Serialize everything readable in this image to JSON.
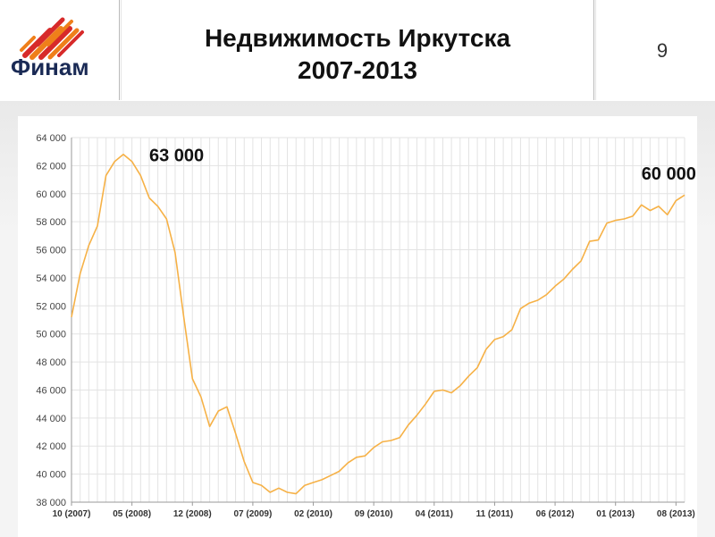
{
  "header": {
    "title_line1": "Недвижимость Иркутска",
    "title_line2": "2007-2013",
    "page_number": "9",
    "logo_text": "Финам"
  },
  "colors": {
    "line": "#f6b146",
    "grid": "#e3e3e3",
    "logo_red": "#d72a2a",
    "logo_orange": "#ef7f1a",
    "logo_text": "#1a2a55"
  },
  "chart_data": {
    "type": "line",
    "title": "",
    "xlabel": "",
    "ylabel": "",
    "ylim": [
      38000,
      64000
    ],
    "yticks": [
      38000,
      40000,
      42000,
      44000,
      46000,
      48000,
      50000,
      52000,
      54000,
      56000,
      58000,
      60000,
      62000,
      64000
    ],
    "ytick_labels": [
      "38 000",
      "40 000",
      "42 000",
      "44 000",
      "46 000",
      "48 000",
      "50 000",
      "52 000",
      "54 000",
      "56 000",
      "58 000",
      "60 000",
      "62 000",
      "64 000"
    ],
    "xticks": [
      0,
      7,
      14,
      21,
      28,
      35,
      42,
      49,
      56,
      63,
      70
    ],
    "xtick_labels": [
      "10 (2007)",
      "05 (2008)",
      "12 (2008)",
      "07 (2009)",
      "02 (2010)",
      "09 (2010)",
      "04 (2011)",
      "11 (2011)",
      "06 (2012)",
      "01 (2013)",
      "08 (2013)"
    ],
    "grid": true,
    "annotations": [
      {
        "text": "63 000",
        "x": 9,
        "y": 62300
      },
      {
        "text": "60 000",
        "x": 66,
        "y": 61000
      }
    ],
    "series": [
      {
        "x": [
          0,
          1,
          2,
          3,
          4,
          5,
          6,
          7,
          8,
          9,
          10,
          11,
          12,
          13,
          14,
          15,
          16,
          17,
          18,
          19,
          20,
          21,
          22,
          23,
          24,
          25,
          26,
          27,
          28,
          29,
          30,
          31,
          32,
          33,
          34,
          35,
          36,
          37,
          38,
          39,
          40,
          41,
          42,
          43,
          44,
          45,
          46,
          47,
          48,
          49,
          50,
          51,
          52,
          53,
          54,
          55,
          56,
          57,
          58,
          59,
          60,
          61,
          62,
          63,
          64,
          65,
          66,
          67,
          68,
          69,
          70,
          71
        ],
        "values": [
          51200,
          54300,
          56300,
          57700,
          61300,
          62300,
          62800,
          62300,
          61300,
          59700,
          59100,
          58200,
          55800,
          51200,
          46800,
          45500,
          43400,
          44500,
          44800,
          42900,
          40900,
          39400,
          39200,
          38700,
          39000,
          38700,
          38600,
          39200,
          39400,
          39600,
          39900,
          40200,
          40800,
          41200,
          41300,
          41900,
          42300,
          42400,
          42600,
          43500,
          44200,
          45000,
          45900,
          46000,
          45800,
          46300,
          47000,
          47600,
          48900,
          49600,
          49800,
          50300,
          51800,
          52200,
          52400,
          52800,
          53400,
          53900,
          54600,
          55200,
          56600,
          56700,
          57900,
          58100,
          58200,
          58400,
          59200,
          58800,
          59100,
          58500,
          59500,
          59900
        ]
      }
    ]
  }
}
